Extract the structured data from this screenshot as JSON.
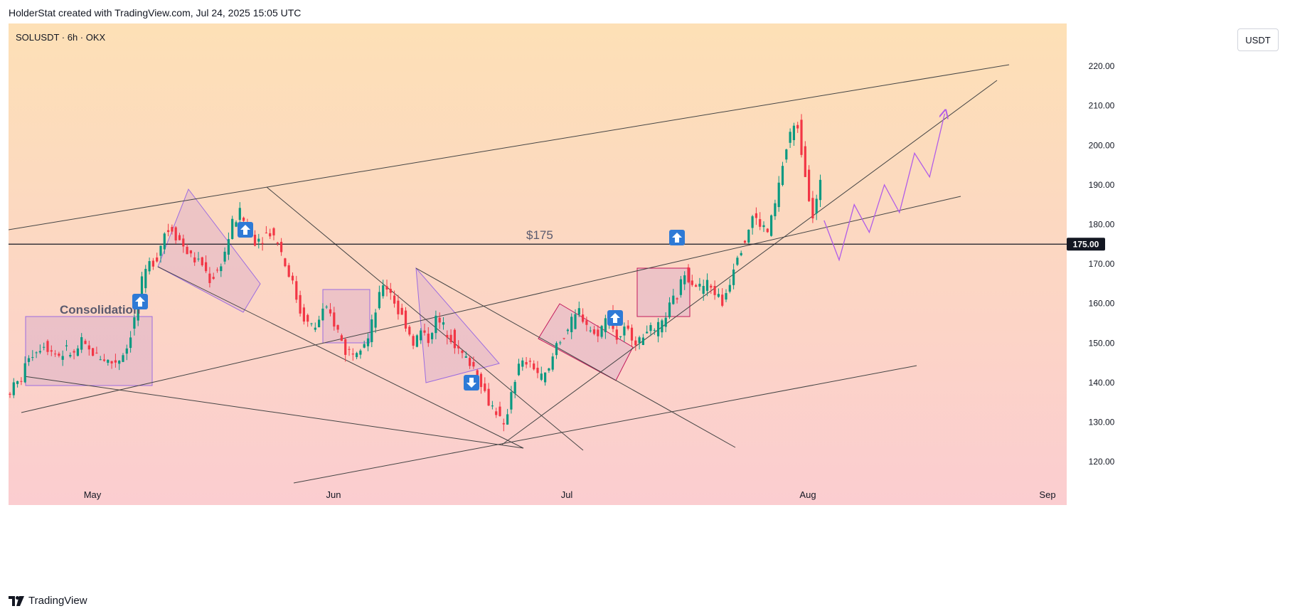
{
  "header": {
    "caption": "HolderStat created with TradingView.com, Jul 24, 2025 15:05 UTC"
  },
  "symbol_info": "SOLUSDT · 6h · OKX",
  "unit_button": "USDT",
  "footer": {
    "brand": "TradingView"
  },
  "colors": {
    "bull": "#089981",
    "bear": "#f23645",
    "bg_top": "#fde0b6",
    "bg_bottom": "#fbcdd0",
    "pattern_line": "#9c6ce0",
    "path_arrow": "#b15ce8"
  },
  "icons": [
    "arrow-up-icon",
    "arrow-down-icon",
    "tradingview-logo-icon"
  ],
  "chart_data": {
    "type": "candlestick",
    "x_axis": {
      "labels": [
        "May",
        "Jun",
        "Jul",
        "Aug",
        "Sep"
      ]
    },
    "y_axis": {
      "ticks": [
        "120.00",
        "130.00",
        "140.00",
        "150.00",
        "160.00",
        "170.00",
        "180.00",
        "190.00",
        "200.00",
        "210.00",
        "220.00"
      ],
      "range": [
        113,
        229
      ]
    },
    "current_price_label": "175.00",
    "annotations": {
      "consolidation": "Consolidation",
      "level": "$175"
    },
    "price_path_points": [
      [
        0,
        137
      ],
      [
        2,
        139
      ],
      [
        4,
        141
      ],
      [
        6,
        147
      ],
      [
        8,
        148
      ],
      [
        10,
        150
      ],
      [
        12,
        148
      ],
      [
        14,
        147
      ],
      [
        16,
        148
      ],
      [
        18,
        147
      ],
      [
        20,
        150
      ],
      [
        22,
        148
      ],
      [
        24,
        147
      ],
      [
        26,
        146
      ],
      [
        28,
        145
      ],
      [
        30,
        146
      ],
      [
        32,
        149
      ],
      [
        34,
        156
      ],
      [
        36,
        165
      ],
      [
        38,
        170
      ],
      [
        40,
        172
      ],
      [
        42,
        178
      ],
      [
        44,
        179
      ],
      [
        46,
        176
      ],
      [
        48,
        173
      ],
      [
        50,
        171
      ],
      [
        52,
        170
      ],
      [
        54,
        166
      ],
      [
        56,
        168
      ],
      [
        58,
        173
      ],
      [
        60,
        180
      ],
      [
        62,
        183
      ],
      [
        64,
        179
      ],
      [
        66,
        176
      ],
      [
        68,
        177
      ],
      [
        70,
        178
      ],
      [
        72,
        176
      ],
      [
        74,
        170
      ],
      [
        76,
        165
      ],
      [
        78,
        158
      ],
      [
        80,
        155
      ],
      [
        82,
        154
      ],
      [
        84,
        158
      ],
      [
        86,
        157
      ],
      [
        88,
        153
      ],
      [
        90,
        148
      ],
      [
        92,
        148
      ],
      [
        94,
        150
      ],
      [
        96,
        151
      ],
      [
        98,
        158
      ],
      [
        100,
        165
      ],
      [
        102,
        163
      ],
      [
        104,
        158
      ],
      [
        106,
        155
      ],
      [
        108,
        150
      ],
      [
        110,
        153
      ],
      [
        112,
        151
      ],
      [
        114,
        156
      ],
      [
        116,
        154
      ],
      [
        118,
        152
      ],
      [
        120,
        148
      ],
      [
        122,
        146
      ],
      [
        124,
        144
      ],
      [
        126,
        140
      ],
      [
        128,
        135
      ],
      [
        130,
        133
      ],
      [
        132,
        128
      ],
      [
        134,
        138
      ],
      [
        136,
        144
      ],
      [
        138,
        145
      ],
      [
        140,
        144
      ],
      [
        142,
        141
      ],
      [
        144,
        143
      ],
      [
        146,
        150
      ],
      [
        148,
        152
      ],
      [
        150,
        155
      ],
      [
        152,
        158
      ],
      [
        154,
        155
      ],
      [
        156,
        152
      ],
      [
        158,
        154
      ],
      [
        160,
        157
      ],
      [
        162,
        151
      ],
      [
        164,
        153
      ],
      [
        166,
        152
      ],
      [
        168,
        150
      ],
      [
        170,
        154
      ],
      [
        172,
        152
      ],
      [
        174,
        155
      ],
      [
        176,
        159
      ],
      [
        178,
        162
      ],
      [
        180,
        168
      ],
      [
        182,
        166
      ],
      [
        184,
        164
      ],
      [
        186,
        165
      ],
      [
        188,
        163
      ],
      [
        190,
        160
      ],
      [
        192,
        166
      ],
      [
        194,
        173
      ],
      [
        196,
        176
      ],
      [
        198,
        182
      ],
      [
        200,
        180
      ],
      [
        202,
        178
      ],
      [
        204,
        185
      ],
      [
        206,
        195
      ],
      [
        208,
        203
      ],
      [
        210,
        205
      ],
      [
        212,
        193
      ],
      [
        214,
        182
      ],
      [
        216,
        190
      ]
    ],
    "projection_path": [
      [
        216,
        181
      ],
      [
        220,
        171
      ],
      [
        224,
        185
      ],
      [
        228,
        178
      ],
      [
        232,
        190
      ],
      [
        236,
        183
      ],
      [
        240,
        198
      ],
      [
        244,
        192
      ],
      [
        248,
        208
      ]
    ]
  }
}
